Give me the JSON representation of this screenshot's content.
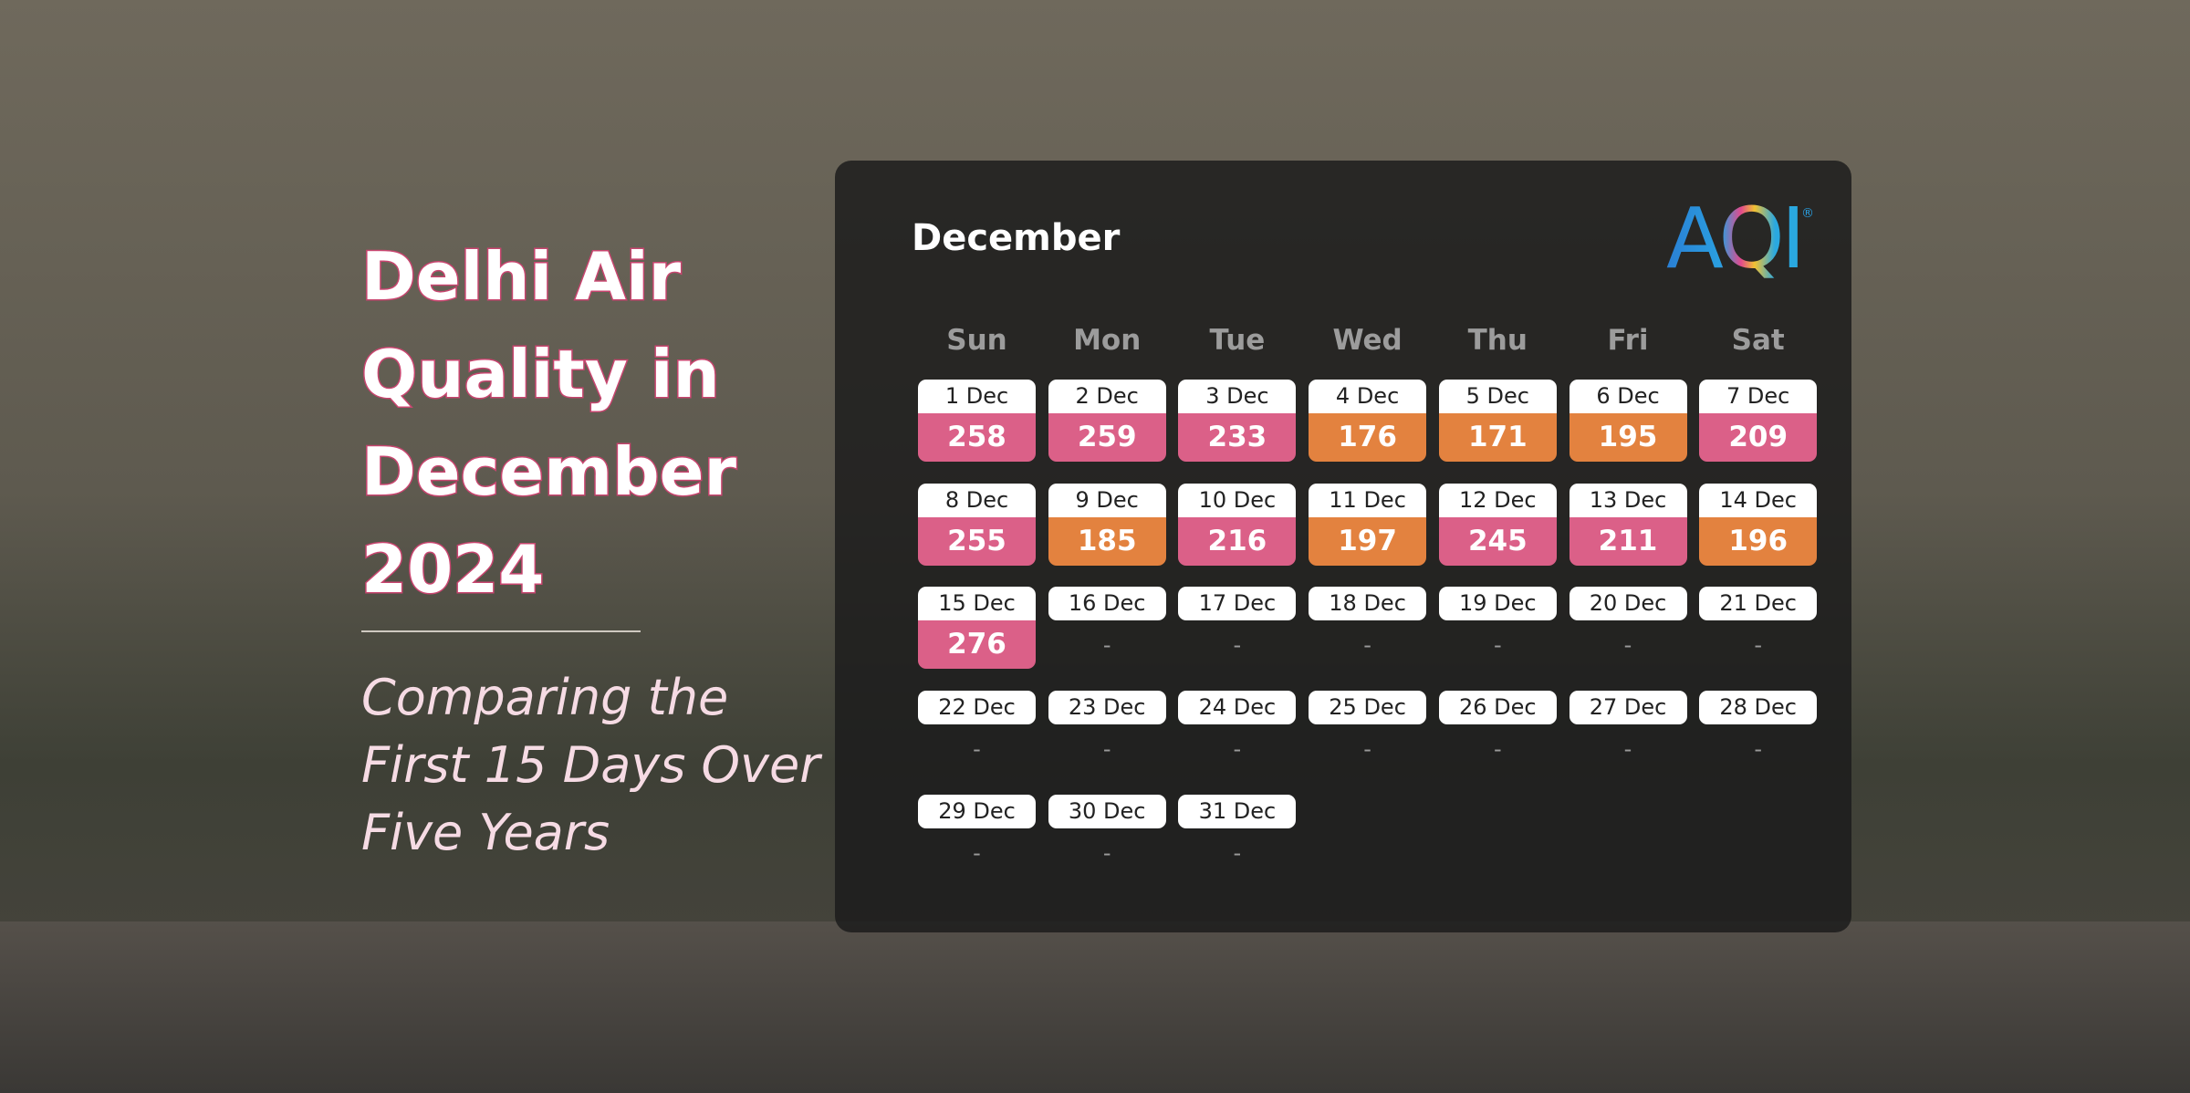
{
  "header": {
    "title": [
      "Delhi Air",
      "Quality in",
      "December",
      "2024"
    ],
    "subtitle": [
      "Comparing the",
      "First 15 Days Over",
      "Five Years"
    ]
  },
  "calendar": {
    "month": "December",
    "logo": "AQI",
    "logo_mark": "®",
    "weekdays": [
      "Sun",
      "Mon",
      "Tue",
      "Wed",
      "Thu",
      "Fri",
      "Sat"
    ],
    "days": [
      {
        "date": "1 Dec",
        "value": 258,
        "color": "#db6088"
      },
      {
        "date": "2 Dec",
        "value": 259,
        "color": "#db6088"
      },
      {
        "date": "3 Dec",
        "value": 233,
        "color": "#db6088"
      },
      {
        "date": "4 Dec",
        "value": 176,
        "color": "#e3823f"
      },
      {
        "date": "5 Dec",
        "value": 171,
        "color": "#e3823f"
      },
      {
        "date": "6 Dec",
        "value": 195,
        "color": "#e3823f"
      },
      {
        "date": "7 Dec",
        "value": 209,
        "color": "#db6088"
      },
      {
        "date": "8 Dec",
        "value": 255,
        "color": "#db6088"
      },
      {
        "date": "9 Dec",
        "value": 185,
        "color": "#e3823f"
      },
      {
        "date": "10 Dec",
        "value": 216,
        "color": "#db6088"
      },
      {
        "date": "11 Dec",
        "value": 197,
        "color": "#e3823f"
      },
      {
        "date": "12 Dec",
        "value": 245,
        "color": "#db6088"
      },
      {
        "date": "13 Dec",
        "value": 211,
        "color": "#db6088"
      },
      {
        "date": "14 Dec",
        "value": 196,
        "color": "#e3823f"
      },
      {
        "date": "15 Dec",
        "value": 276,
        "color": "#db6088"
      },
      {
        "date": "16 Dec",
        "value": "-"
      },
      {
        "date": "17 Dec",
        "value": "-"
      },
      {
        "date": "18 Dec",
        "value": "-"
      },
      {
        "date": "19 Dec",
        "value": "-"
      },
      {
        "date": "20 Dec",
        "value": "-"
      },
      {
        "date": "21 Dec",
        "value": "-"
      },
      {
        "date": "22 Dec",
        "value": "-"
      },
      {
        "date": "23 Dec",
        "value": "-"
      },
      {
        "date": "24 Dec",
        "value": "-"
      },
      {
        "date": "25 Dec",
        "value": "-"
      },
      {
        "date": "26 Dec",
        "value": "-"
      },
      {
        "date": "27 Dec",
        "value": "-"
      },
      {
        "date": "28 Dec",
        "value": "-"
      },
      {
        "date": "29 Dec",
        "value": "-"
      },
      {
        "date": "30 Dec",
        "value": "-"
      },
      {
        "date": "31 Dec",
        "value": "-"
      }
    ]
  }
}
